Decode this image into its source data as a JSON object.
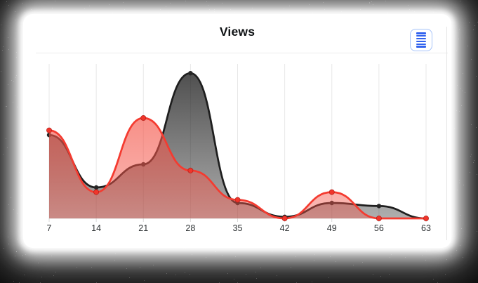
{
  "card": {
    "title": "Views",
    "toolbar": {
      "icon": "menu-list-icon"
    }
  },
  "chart_data": {
    "type": "area",
    "title": "Views",
    "x": [
      7,
      14,
      21,
      28,
      35,
      42,
      49,
      56,
      63
    ],
    "x_labels": [
      "7",
      "14",
      "21",
      "28",
      "35",
      "42",
      "49",
      "56",
      "63"
    ],
    "series": [
      {
        "id": "series-1",
        "line_color": "#1e1e1e",
        "marker_color": "#262626",
        "fill_color": "#1e1e1e",
        "fill_opacity_from": 0.78,
        "fill_opacity_to": 0.36,
        "values": [
          54,
          20,
          35,
          94,
          10,
          1,
          10,
          8,
          0
        ]
      },
      {
        "id": "series-2",
        "line_color": "#f43b30",
        "marker_color": "#f0352b",
        "fill_color": "#f4564a",
        "fill_opacity_from": 0.66,
        "fill_opacity_to": 0.4,
        "values": [
          57,
          17,
          65,
          31,
          12,
          0,
          17,
          0,
          0
        ]
      }
    ],
    "ylim": [
      0,
      100
    ],
    "xlabel": "",
    "ylabel": "",
    "legend": "none",
    "grid": "vertical-only",
    "curve": "smooth",
    "markers": true,
    "colors": {
      "grid_line": "#e7e7e7",
      "axis_line": "#e0e0e0",
      "axis_tick": "#d9d9d9",
      "axis_label": "#2d3133"
    }
  }
}
